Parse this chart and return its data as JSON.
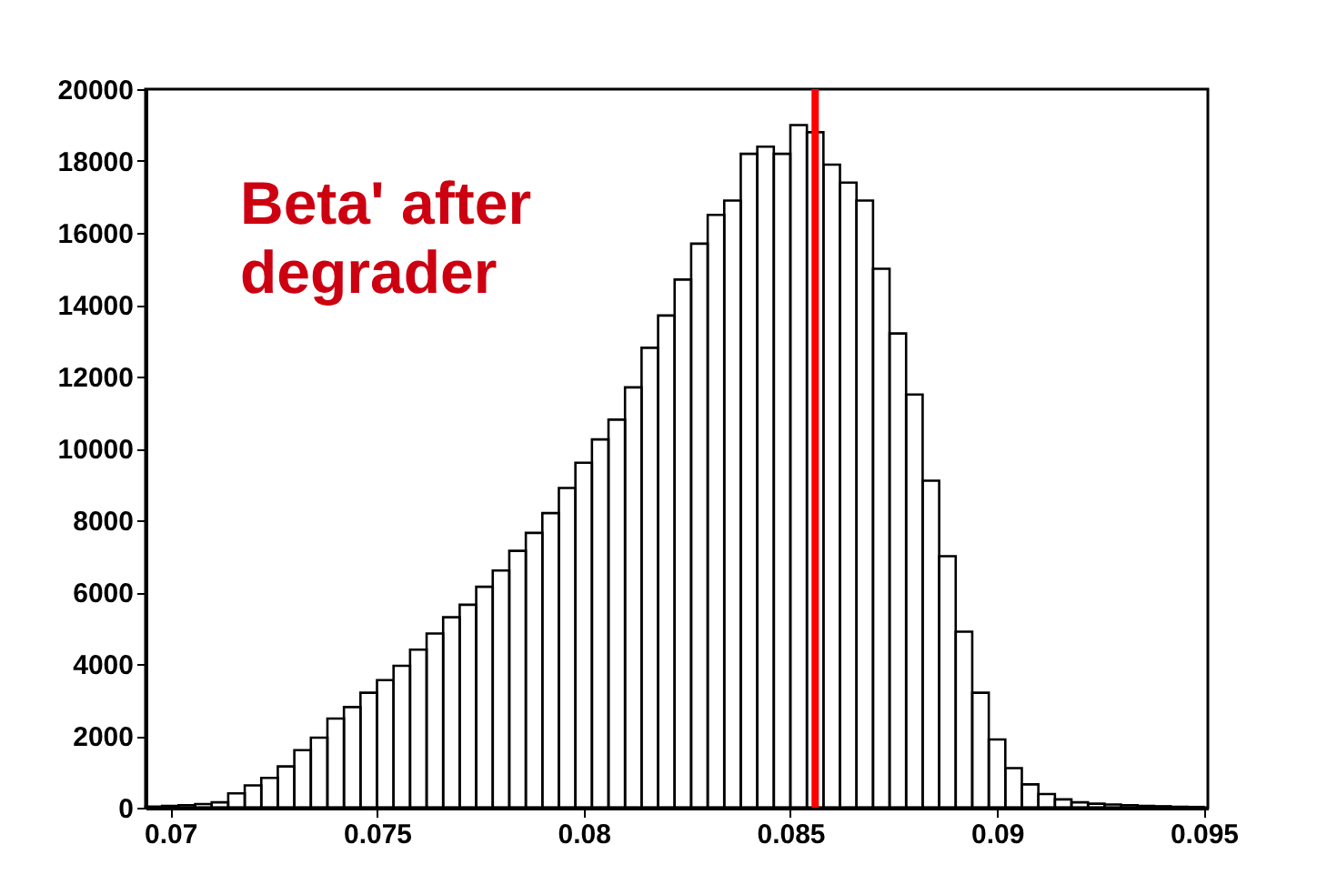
{
  "chart_data": {
    "type": "histogram",
    "bins": [
      0.0694,
      0.0698,
      0.0702,
      0.0706,
      0.071,
      0.0714,
      0.0718,
      0.0722,
      0.0726,
      0.073,
      0.0734,
      0.0738,
      0.0742,
      0.0746,
      0.075,
      0.0754,
      0.0758,
      0.0762,
      0.0766,
      0.077,
      0.0774,
      0.0778,
      0.0782,
      0.0786,
      0.079,
      0.0794,
      0.0798,
      0.0802,
      0.0806,
      0.081,
      0.0814,
      0.0818,
      0.0822,
      0.0826,
      0.083,
      0.0834,
      0.0838,
      0.0842,
      0.0846,
      0.085,
      0.0854,
      0.0858,
      0.0862,
      0.0866,
      0.087,
      0.0874,
      0.0878,
      0.0882,
      0.0886,
      0.089,
      0.0894,
      0.0898,
      0.0902,
      0.0906,
      0.091,
      0.0914,
      0.0918,
      0.0922,
      0.0926,
      0.093,
      0.0934,
      0.0938,
      0.0942,
      0.0946,
      0.095
    ],
    "values": [
      30,
      50,
      70,
      100,
      150,
      400,
      620,
      830,
      1150,
      1600,
      1950,
      2480,
      2800,
      3200,
      3550,
      3950,
      4400,
      4850,
      5300,
      5650,
      6150,
      6600,
      7150,
      7650,
      8200,
      8900,
      9600,
      10250,
      10800,
      11700,
      12800,
      13700,
      14700,
      15700,
      16500,
      16900,
      18200,
      18400,
      18200,
      19000,
      18800,
      17900,
      17400,
      16900,
      15000,
      13200,
      11500,
      9100,
      7000,
      4900,
      3200,
      1900,
      1100,
      650,
      380,
      230,
      150,
      110,
      90,
      70,
      50,
      40,
      25,
      20
    ],
    "color": "#000000",
    "xlim": [
      0.0694,
      0.0951
    ],
    "xticks": [
      0.07,
      0.075,
      0.08,
      0.085,
      0.09,
      0.095
    ],
    "ylim": [
      0,
      20000
    ],
    "yticks": [
      0,
      2000,
      4000,
      6000,
      8000,
      10000,
      12000,
      14000,
      16000,
      18000,
      20000
    ],
    "ref_lines": [
      {
        "axis": "x",
        "value": 0.0856,
        "color": "#ff0000"
      }
    ],
    "annotations": [
      "Beta' after degrader"
    ],
    "grid": false
  }
}
